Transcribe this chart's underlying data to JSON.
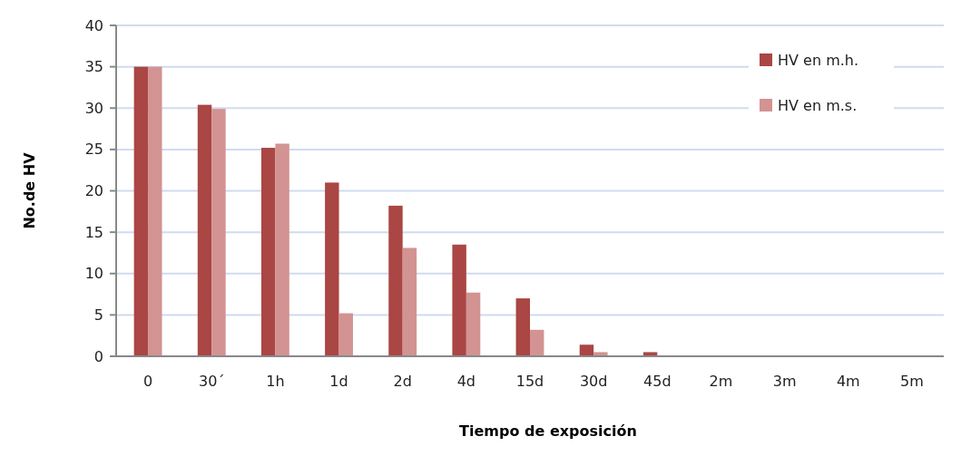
{
  "chart_data": {
    "type": "bar",
    "xlabel": "Tiempo de exposición",
    "ylabel": "No.de HV",
    "categories": [
      "0",
      "30´",
      "1h",
      "1d",
      "2d",
      "4d",
      "15d",
      "30d",
      "45d",
      "2m",
      "3m",
      "4m",
      "5m"
    ],
    "series": [
      {
        "name": "HV en m.h.",
        "color": "#aa4643",
        "values": [
          35,
          30.4,
          25.2,
          21,
          18.2,
          13.5,
          7,
          1.4,
          0.5,
          0,
          0,
          0,
          0
        ]
      },
      {
        "name": "HV en m.s.",
        "color": "#d29392",
        "values": [
          35,
          29.9,
          25.7,
          5.2,
          13.1,
          7.7,
          3.2,
          0.5,
          0,
          0,
          0,
          0,
          0
        ]
      }
    ],
    "ylim": [
      0,
      40
    ],
    "yticks": [
      0,
      5,
      10,
      15,
      20,
      25,
      30,
      35,
      40
    ],
    "grid": "y",
    "legend": "top right"
  }
}
